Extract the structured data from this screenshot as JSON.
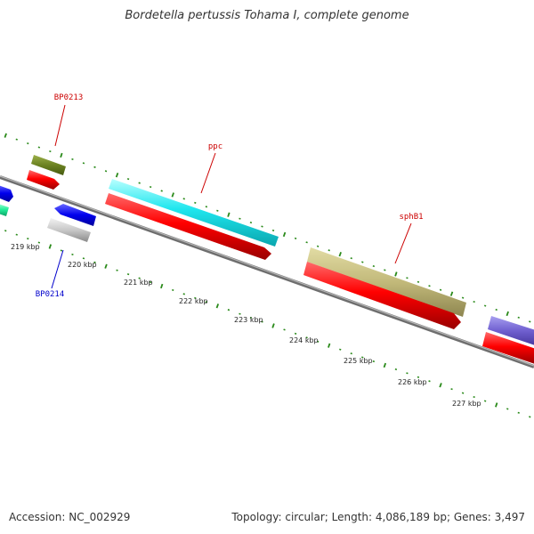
{
  "title": "Bordetella pertussis Tohama I, complete genome",
  "footer": {
    "accession": "Accession: NC_002929",
    "stats": "Topology: circular; Length: 4,086,189 bp; Genes: 3,497"
  },
  "colors": {
    "forward_label": "#cc0000",
    "reverse_label": "#0000cc",
    "tick": "#2a8a1a",
    "backbone": "#7f7f7f",
    "cds": "#ff0000"
  },
  "scale_labels": [
    "219 kbp",
    "220 kbp",
    "221 kbp",
    "222 kbp",
    "223 kbp",
    "224 kbp",
    "225 kbp",
    "226 kbp",
    "227 kbp"
  ],
  "gene_labels": [
    {
      "text": "BP0213",
      "strand": "forward"
    },
    {
      "text": "ppc",
      "strand": "forward"
    },
    {
      "text": "sphB1",
      "strand": "forward"
    },
    {
      "text": "BP0214",
      "strand": "reverse"
    }
  ]
}
